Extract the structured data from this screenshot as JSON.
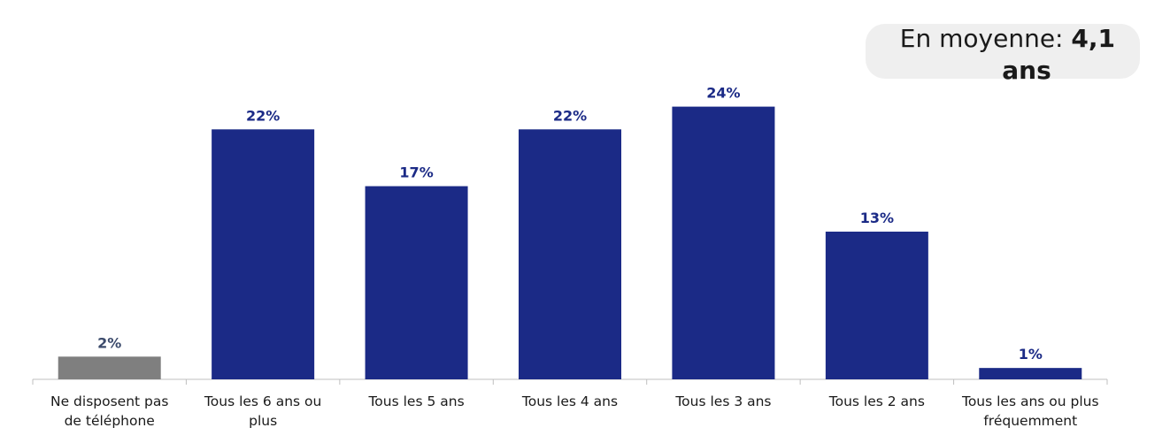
{
  "summary": {
    "prefix": "En moyenne: ",
    "value": "4,1",
    "unit": "ans"
  },
  "chart_data": {
    "type": "bar",
    "categories": [
      [
        "Ne disposent pas",
        "de téléphone"
      ],
      [
        "Tous les 6 ans ou",
        "plus"
      ],
      [
        "Tous les 5 ans"
      ],
      [
        "Tous les 4 ans"
      ],
      [
        "Tous les 3 ans"
      ],
      [
        "Tous les 2 ans"
      ],
      [
        "Tous les ans ou plus",
        "fréquemment"
      ]
    ],
    "values": [
      2,
      22,
      17,
      22,
      24,
      13,
      1
    ],
    "value_labels": [
      "2%",
      "22%",
      "17%",
      "22%",
      "24%",
      "13%",
      "1%"
    ],
    "bar_colors": [
      "#7f7f7f",
      "#1b2a86",
      "#1b2a86",
      "#1b2a86",
      "#1b2a86",
      "#1b2a86",
      "#1b2a86"
    ],
    "label_colors": [
      "#3b4a6b",
      "#1b2a86",
      "#1b2a86",
      "#1b2a86",
      "#1b2a86",
      "#1b2a86",
      "#1b2a86"
    ],
    "axis_color": "#bfbfbf",
    "tick_label_color": "#1a1a1a",
    "ylim": [
      0,
      26
    ],
    "grid": false
  }
}
